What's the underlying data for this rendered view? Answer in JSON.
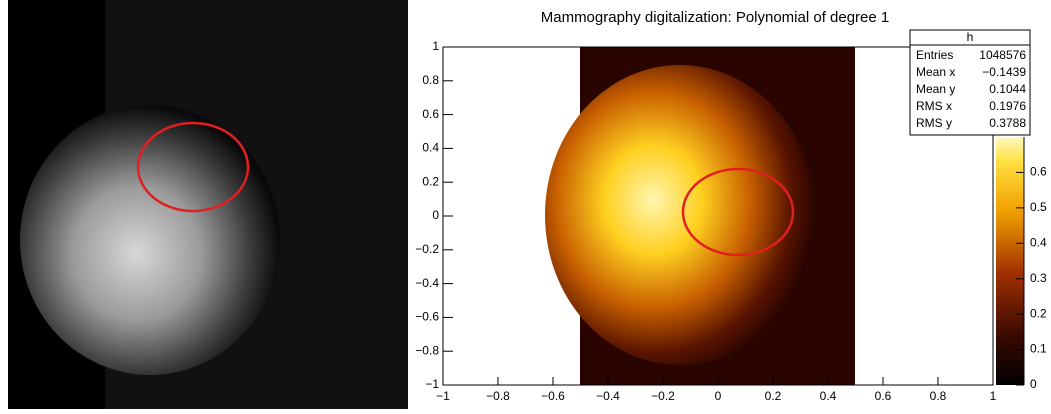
{
  "chart_data": {
    "type": "heatmap",
    "title": "Mammography digitalization: Polynomial of degree 1",
    "xlim": [
      -1,
      1
    ],
    "xticks": [
      {
        "value": -1,
        "label": "−1"
      },
      {
        "value": -0.8,
        "label": "−0.8"
      },
      {
        "value": -0.6,
        "label": "−0.6"
      },
      {
        "value": -0.4,
        "label": "−0.4"
      },
      {
        "value": -0.2,
        "label": "−0.2"
      },
      0,
      0.2,
      0.4,
      0.6,
      0.8,
      1
    ],
    "ylim": [
      -1,
      1
    ],
    "yticks": [
      {
        "value": -1,
        "label": "−1"
      },
      {
        "value": -0.8,
        "label": "−0.8"
      },
      {
        "value": -0.6,
        "label": "−0.6"
      },
      {
        "value": -0.4,
        "label": "−0.4"
      },
      {
        "value": -0.2,
        "label": "−0.2"
      },
      0,
      0.2,
      0.4,
      0.6,
      0.8,
      1
    ],
    "zlim": [
      0,
      0.7
    ],
    "zticks": [
      0,
      0.1,
      0.2,
      0.3,
      0.4,
      0.5,
      0.6
    ],
    "stats": {
      "title": "h",
      "rows": [
        {
          "name": "Entries",
          "value": 1048576
        },
        {
          "name": "Mean x",
          "value": -0.1439,
          "value_label": "−0.1439"
        },
        {
          "name": "Mean y",
          "value": 0.1044
        },
        {
          "name": "RMS x",
          "value": 0.1976
        },
        {
          "name": "RMS y",
          "value": 0.3788
        }
      ]
    }
  }
}
